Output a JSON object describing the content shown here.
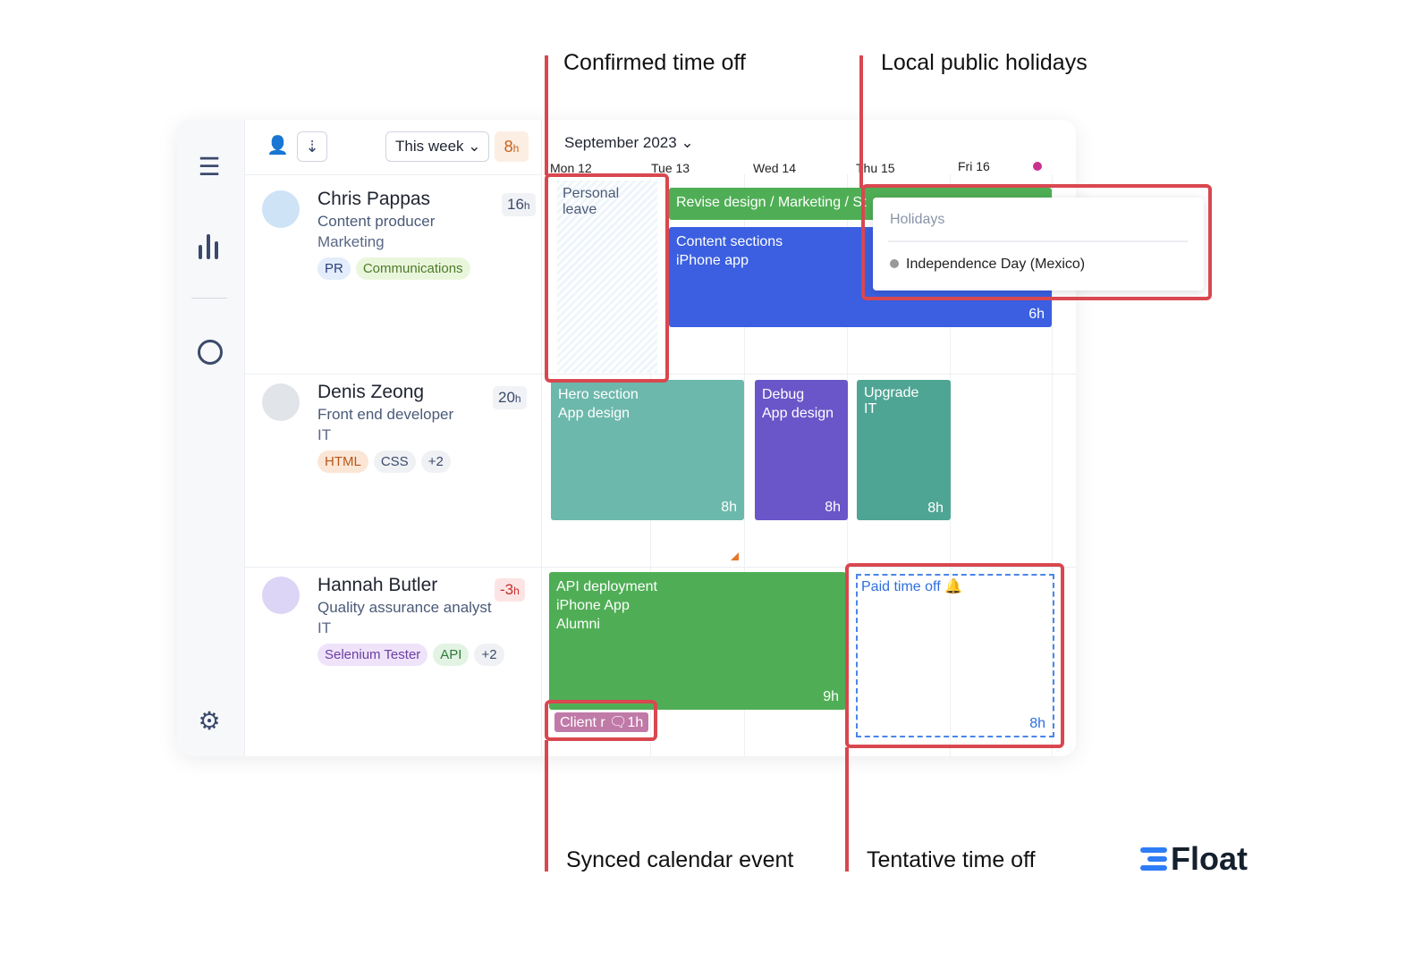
{
  "annotations": {
    "confirmed": "Confirmed time off",
    "holidays": "Local public holidays",
    "synced": "Synced calendar event",
    "tentative": "Tentative time off"
  },
  "sidebar": {
    "icons": [
      "list-icon",
      "chart-icon",
      "timer-icon",
      "gear-icon"
    ]
  },
  "toolbar": {
    "range": "This week",
    "hours": "8",
    "unit": "h"
  },
  "calendar": {
    "month": "September 2023",
    "days": [
      "Mon 12",
      "Tue 13",
      "Wed 14",
      "Thu 15",
      "Fri 16"
    ]
  },
  "people": [
    {
      "name": "Chris Pappas",
      "role": "Content producer",
      "dept": "Marketing",
      "hours": "16",
      "tags": [
        "PR",
        "Communications"
      ]
    },
    {
      "name": "Denis Zeong",
      "role": "Front end developer",
      "dept": "IT",
      "hours": "20",
      "tags": [
        "HTML",
        "CSS",
        "+2"
      ]
    },
    {
      "name": "Hannah Butler",
      "role": "Quality assurance analyst",
      "dept": "IT",
      "hours": "-3",
      "tags": [
        "Selenium Tester",
        "API",
        "+2"
      ]
    }
  ],
  "events": {
    "personal": {
      "line1": "Personal",
      "line2": "leave"
    },
    "revise": "Revise design / Marketing / St",
    "content": {
      "title": "Content sections",
      "sub": "iPhone app",
      "hours": "6h"
    },
    "hero": {
      "title": "Hero section",
      "sub": "App design",
      "hours": "8h"
    },
    "debug": {
      "title": "Debug",
      "sub": "App design",
      "hours": "8h"
    },
    "upgrade": {
      "title": "Upgrade",
      "sub": "IT",
      "hours": "8h"
    },
    "api": {
      "title": "API deployment",
      "sub": "iPhone App",
      "sub2": "Alumni",
      "hours": "9h"
    },
    "client": {
      "label": "Client r",
      "hours": "1h"
    },
    "pto": {
      "label": "Paid time off",
      "hours": "8h"
    }
  },
  "holiday_popup": {
    "title": "Holidays",
    "item": "Independence Day (Mexico)"
  },
  "brand": {
    "name": "Float",
    "color": "#2e7cf6"
  },
  "colors": {
    "green": "#4fae55",
    "blue": "#3b5fe0",
    "teal": "#6cb8ac",
    "purple": "#6a56c9",
    "teal_dark": "#4ea593",
    "annotation": "#d9474f"
  }
}
